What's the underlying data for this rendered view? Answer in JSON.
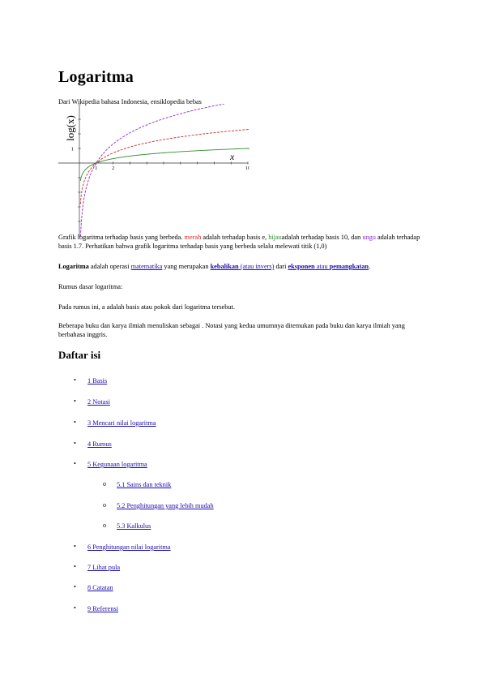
{
  "article": {
    "title": "Logaritma",
    "source": "Dari Wikipedia bahasa Indonesia, ensiklopedia bebas"
  },
  "figure": {
    "ylabel": "log(x)",
    "xlabel": "x",
    "tick_y_1": "1",
    "tick_x_1": "1",
    "tick_x_2": "2",
    "tick_x_10": "10",
    "caption": {
      "part1": "Grafik logaritma terhadap basis yang berbeda. ",
      "red_word": "merah",
      "part2": " adalah terhadap basis e, ",
      "green_word": "hijau",
      "part3": "adalah terhadap basis 10, dan ",
      "purple_word": "ungu",
      "part4": " adalah terhadap basis 1.7. Perhatikan bahwa grafik logaritma terhadap basis yang berbeda selalu melewati titik (1,0)"
    },
    "colors": {
      "red": "#d62828",
      "green": "#2e8b2e",
      "purple": "#8e2bd1"
    }
  },
  "chart_data": {
    "type": "line",
    "xlabel": "x",
    "ylabel": "log(x)",
    "xlim": [
      0.05,
      10.5
    ],
    "ylim": [
      -5,
      5
    ],
    "series": [
      {
        "base": "e",
        "color": "#d62828",
        "x": [
          0.1,
          0.25,
          0.5,
          1,
          2,
          3,
          4,
          5,
          6,
          7,
          8,
          9,
          10
        ],
        "values": [
          -2.303,
          -1.386,
          -0.693,
          0,
          0.693,
          1.099,
          1.386,
          1.609,
          1.792,
          1.946,
          2.079,
          2.197,
          2.303
        ]
      },
      {
        "base": "10",
        "color": "#2e8b2e",
        "x": [
          0.1,
          0.25,
          0.5,
          1,
          2,
          3,
          4,
          5,
          6,
          7,
          8,
          9,
          10
        ],
        "values": [
          -1,
          -0.602,
          -0.301,
          0,
          0.301,
          0.477,
          0.602,
          0.699,
          0.778,
          0.845,
          0.903,
          0.954,
          1
        ]
      },
      {
        "base": "1.7",
        "color": "#8e2bd1",
        "x": [
          0.1,
          0.25,
          0.5,
          1,
          2,
          3,
          4,
          5,
          6,
          7,
          8,
          9,
          10
        ],
        "values": [
          -4.339,
          -2.612,
          -1.306,
          0,
          1.306,
          2.07,
          2.612,
          3.033,
          3.377,
          3.667,
          3.919,
          4.141,
          4.339
        ]
      }
    ]
  },
  "intro": {
    "bold_word": "Logaritma",
    "t1": " adalah operasi ",
    "link_matematika": "matematika",
    "t2": " yang merupakan ",
    "link_kebalikan": "kebalikan",
    "link_atau_invers": " (atau invers)",
    "t3": " dari ",
    "link_eksponen": "eksponen",
    "link_atau_pemangkatan_a": " atau ",
    "link_pemangkatan": "pemangkatan",
    "t4": "."
  },
  "rumus": "Rumus dasar logaritma:",
  "pada_rumus": "Pada rumus ini, a adalah basis atau pokok dari logaritma tersebut.",
  "beberapa": "Beberapa buku dan karya ilmiah menuliskan sebagai . Notasi yang kedua umumnya ditemukan pada buku dan karya ilmiah yang berbahasa inggris.",
  "toc": {
    "title": "Daftar isi",
    "bullet": "•",
    "sub_bullet": "o",
    "items": [
      "1 Basis",
      "2 Notasi",
      "3 Mencari nilai logaritma",
      "4 Rumus",
      "5 Kegunaan logaritma",
      "5.1 Sains dan teknik",
      "5.2 Penghitungan yang lebih mudah",
      "5.3 Kalkulus",
      "6 Penghitungan nilai logaritma",
      "7 Lihat pula",
      "8 Catatan",
      "9 Referensi"
    ]
  }
}
